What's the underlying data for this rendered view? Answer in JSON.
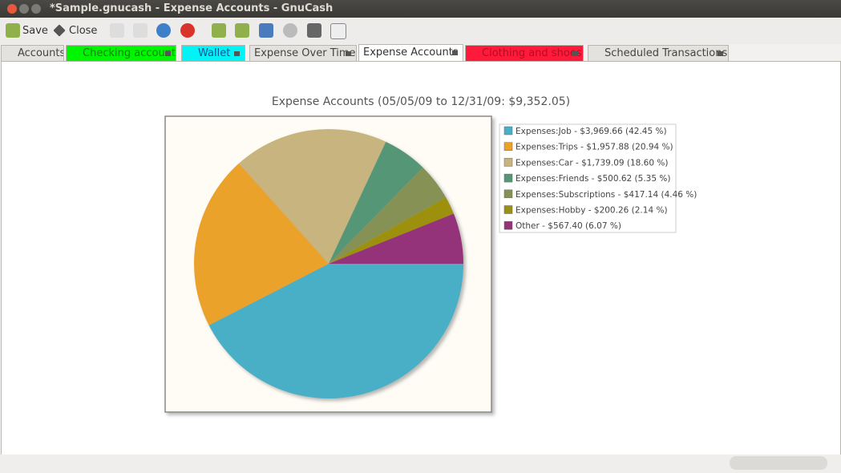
{
  "window": {
    "title": "*Sample.gnucash - Expense Accounts - GnuCash"
  },
  "toolbar": {
    "save": "Save",
    "close": "Close"
  },
  "tabs": [
    "Accounts",
    "Checking account",
    "Wallet",
    "Expense Over Time",
    "Expense Accounts",
    "Clothing and shoes",
    "Scheduled Transactions"
  ],
  "chart_data": {
    "type": "pie",
    "title": "Expense Accounts (05/05/09 to 12/31/09: $9,352.05)",
    "categories": [
      "Expenses:Job - $3,969.66 (42.45 %)",
      "Expenses:Trips - $1,957.88 (20.94 %)",
      "Expenses:Car - $1,739.09 (18.60 %)",
      "Expenses:Friends - $500.62 (5.35 %)",
      "Expenses:Subscriptions - $417.14 (4.46 %)",
      "Expenses:Hobby - $200.26 (2.14 %)",
      "Other - $567.40 (6.07 %)"
    ],
    "values": [
      42.45,
      20.94,
      18.6,
      5.35,
      4.46,
      2.14,
      6.07
    ],
    "colors": [
      "#4aafc6",
      "#eba22b",
      "#c8b47e",
      "#559677",
      "#869254",
      "#9c9010",
      "#94327a"
    ]
  }
}
